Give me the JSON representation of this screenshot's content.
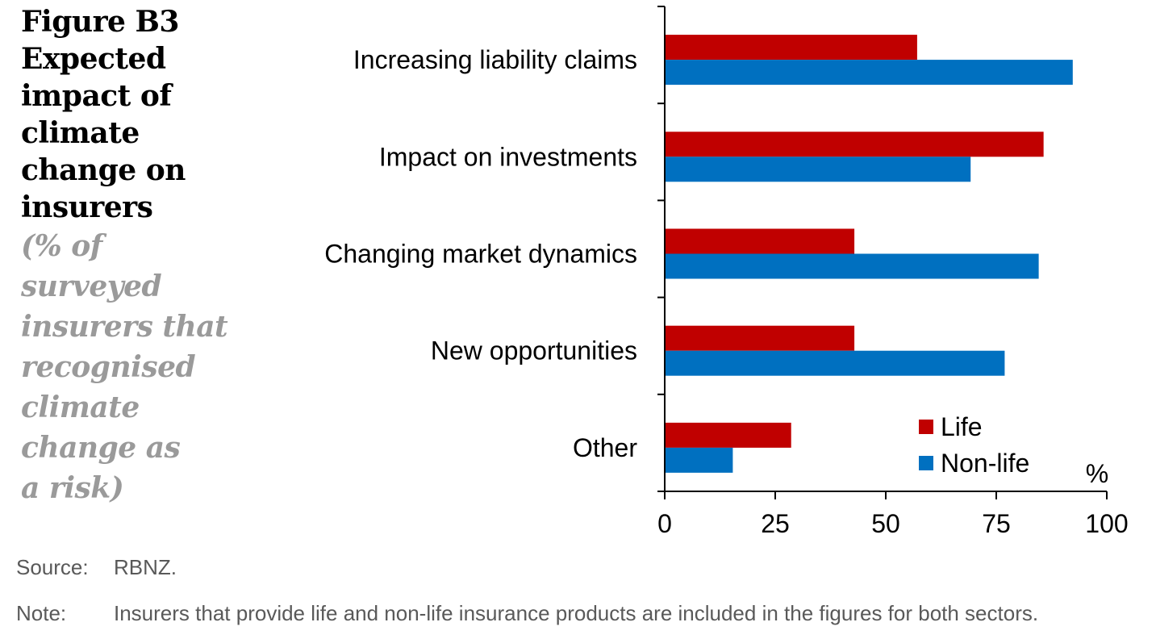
{
  "figure": {
    "title_lines": [
      "Figure B3",
      "Expected",
      "impact of",
      "climate",
      "change on",
      "insurers"
    ],
    "subtitle_lines": [
      "(% of",
      "surveyed",
      "insurers that",
      "recognised",
      "climate",
      "change as",
      "a risk)"
    ]
  },
  "footer": {
    "source_key": "Source:",
    "source_text": "RBNZ.",
    "note_key": "Note:",
    "note_text": "Insurers that provide life and non-life insurance products are included in the figures for both sectors."
  },
  "colors": {
    "life": "#C00000",
    "non_life": "#0070C0",
    "axis": "#000000"
  },
  "chart_data": {
    "type": "bar",
    "orientation": "horizontal",
    "title": "Expected impact of climate change on insurers",
    "subtitle": "(% of surveyed insurers that recognised climate change as a risk)",
    "categories": [
      "Increasing liability claims",
      "Impact on investments",
      "Changing market dynamics",
      "New opportunities",
      "Other"
    ],
    "series": [
      {
        "name": "Life",
        "color": "#C00000",
        "values": [
          57.1,
          85.7,
          42.9,
          42.9,
          28.6
        ]
      },
      {
        "name": "Non-life",
        "color": "#0070C0",
        "values": [
          92.3,
          69.2,
          84.6,
          76.9,
          15.4
        ]
      }
    ],
    "xlabel": "%",
    "ylabel": "",
    "xlim": [
      0,
      100
    ],
    "xticks": [
      0,
      25,
      50,
      75,
      100
    ],
    "xtick_labels": [
      "0",
      "25",
      "50",
      "75",
      "100"
    ],
    "unit_label": "%",
    "grid": false,
    "legend": {
      "entries": [
        "Life",
        "Non-life"
      ],
      "placement": "bottom-right"
    }
  }
}
